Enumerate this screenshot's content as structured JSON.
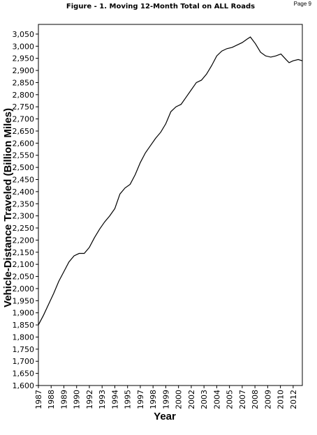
{
  "page_label": "Page 9",
  "chart_data": {
    "type": "line",
    "title": "Figure - 1.  Moving 12-Month Total on ALL Roads",
    "x_label": "Year",
    "y_label": "Vehicle-Distance Traveled (Billion Miles)",
    "x": [
      1987.0,
      1987.5,
      1988.0,
      1988.5,
      1989.0,
      1989.5,
      1990.0,
      1990.5,
      1991.0,
      1991.5,
      1992.0,
      1992.5,
      1993.0,
      1993.5,
      1994.0,
      1994.5,
      1995.0,
      1995.5,
      1996.0,
      1996.5,
      1997.0,
      1997.5,
      1998.0,
      1998.5,
      1999.0,
      1999.5,
      2000.0,
      2000.5,
      2001.0,
      2001.5,
      2002.0,
      2002.5,
      2003.0,
      2003.5,
      2004.0,
      2004.5,
      2005.0,
      2005.5,
      2006.0,
      2006.5,
      2007.0,
      2007.5,
      2007.8,
      2008.3,
      2008.8,
      2009.3,
      2009.8,
      2010.3,
      2010.8,
      2011.3,
      2011.6,
      2012.0,
      2012.5,
      2012.9
    ],
    "series": [
      {
        "color": "#000000",
        "values": [
          1850,
          1890,
          1935,
          1980,
          2030,
          2070,
          2110,
          2135,
          2145,
          2145,
          2170,
          2210,
          2245,
          2275,
          2300,
          2330,
          2390,
          2415,
          2430,
          2470,
          2520,
          2560,
          2590,
          2620,
          2645,
          2680,
          2730,
          2750,
          2760,
          2790,
          2820,
          2850,
          2860,
          2885,
          2920,
          2960,
          2980,
          2990,
          2995,
          3005,
          3015,
          3030,
          3038,
          3010,
          2975,
          2960,
          2955,
          2960,
          2968,
          2945,
          2932,
          2940,
          2945,
          2940
        ]
      }
    ],
    "xlim": [
      1987.0,
      2012.9
    ],
    "ylim": [
      1600,
      3090
    ],
    "xticks": [
      {
        "value": 1987.0,
        "label": "1987"
      },
      {
        "value": 1988.25,
        "label": "1988"
      },
      {
        "value": 1989.5,
        "label": "1989"
      },
      {
        "value": 1990.75,
        "label": "1990"
      },
      {
        "value": 1992.0,
        "label": "1992"
      },
      {
        "value": 1993.25,
        "label": "1993"
      },
      {
        "value": 1994.5,
        "label": "1994"
      },
      {
        "value": 1995.75,
        "label": "1995"
      },
      {
        "value": 1997.0,
        "label": "1997"
      },
      {
        "value": 1998.25,
        "label": "1998"
      },
      {
        "value": 1999.5,
        "label": "1999"
      },
      {
        "value": 2000.75,
        "label": "2000"
      },
      {
        "value": 2002.0,
        "label": "2002"
      },
      {
        "value": 2003.25,
        "label": "2003"
      },
      {
        "value": 2004.5,
        "label": "2004"
      },
      {
        "value": 2005.75,
        "label": "2005"
      },
      {
        "value": 2007.0,
        "label": "2007"
      },
      {
        "value": 2008.25,
        "label": "2008"
      },
      {
        "value": 2009.5,
        "label": "2009"
      },
      {
        "value": 2010.75,
        "label": "2010"
      },
      {
        "value": 2012.0,
        "label": "2012"
      }
    ],
    "yticks": [
      {
        "value": 1600,
        "label": "1,600"
      },
      {
        "value": 1650,
        "label": "1,650"
      },
      {
        "value": 1700,
        "label": "1,700"
      },
      {
        "value": 1750,
        "label": "1,750"
      },
      {
        "value": 1800,
        "label": "1,800"
      },
      {
        "value": 1850,
        "label": "1,850"
      },
      {
        "value": 1900,
        "label": "1,900"
      },
      {
        "value": 1950,
        "label": "1,950"
      },
      {
        "value": 2000,
        "label": "2,000"
      },
      {
        "value": 2050,
        "label": "2,050"
      },
      {
        "value": 2100,
        "label": "2,100"
      },
      {
        "value": 2150,
        "label": "2,150"
      },
      {
        "value": 2200,
        "label": "2,200"
      },
      {
        "value": 2250,
        "label": "2,250"
      },
      {
        "value": 2300,
        "label": "2,300"
      },
      {
        "value": 2350,
        "label": "2,350"
      },
      {
        "value": 2400,
        "label": "2,400"
      },
      {
        "value": 2450,
        "label": "2,450"
      },
      {
        "value": 2500,
        "label": "2,500"
      },
      {
        "value": 2550,
        "label": "2,550"
      },
      {
        "value": 2600,
        "label": "2,600"
      },
      {
        "value": 2650,
        "label": "2,650"
      },
      {
        "value": 2700,
        "label": "2,700"
      },
      {
        "value": 2750,
        "label": "2,750"
      },
      {
        "value": 2800,
        "label": "2,800"
      },
      {
        "value": 2850,
        "label": "2,850"
      },
      {
        "value": 2900,
        "label": "2,900"
      },
      {
        "value": 2950,
        "label": "2,950"
      },
      {
        "value": 3000,
        "label": "3,000"
      },
      {
        "value": 3050,
        "label": "3,050"
      }
    ],
    "grid": false
  }
}
